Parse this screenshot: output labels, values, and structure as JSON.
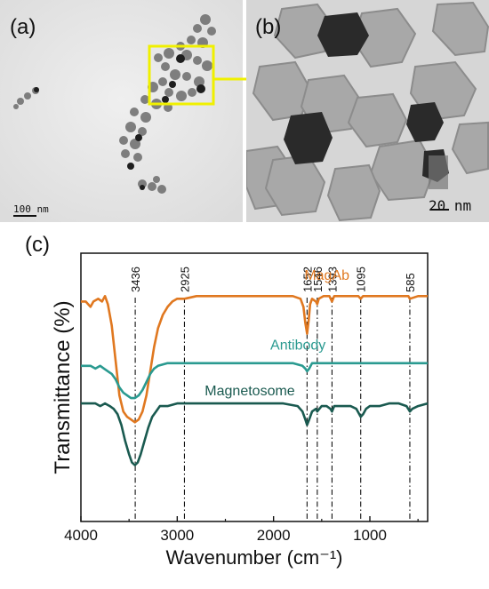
{
  "figure": {
    "panel_a": {
      "label": "(a)",
      "scale_bar_text": "100 nm"
    },
    "panel_b": {
      "label": "(b)",
      "scale_bar_text": "20 nm"
    },
    "panel_c": {
      "label": "(c)"
    }
  },
  "colors": {
    "magab": "#e07820",
    "antibody": "#2a9a90",
    "magnetosome": "#1a5a50",
    "highlight_box": "#f0f000",
    "arrow": "#f0f000"
  },
  "chart_data": {
    "type": "line",
    "xlabel": "Wavenumber (cm⁻¹)",
    "ylabel": "Transmittance (%)",
    "xlim": [
      4000,
      400
    ],
    "x_reversed": true,
    "xticks": [
      4000,
      3000,
      2000,
      1000
    ],
    "yticks_shown": false,
    "grid": false,
    "reference_lines": [
      {
        "x": 3436,
        "label": "3436"
      },
      {
        "x": 2925,
        "label": "2925"
      },
      {
        "x": 1652,
        "label": "1652"
      },
      {
        "x": 1546,
        "label": "1546"
      },
      {
        "x": 1393,
        "label": "1393"
      },
      {
        "x": 1095,
        "label": "1095"
      },
      {
        "x": 585,
        "label": "585"
      }
    ],
    "series": [
      {
        "name": "MagAb",
        "color": "#e07820",
        "points": [
          [
            4000,
            0.82
          ],
          [
            3950,
            0.82
          ],
          [
            3900,
            0.8
          ],
          [
            3870,
            0.82
          ],
          [
            3820,
            0.83
          ],
          [
            3780,
            0.82
          ],
          [
            3750,
            0.84
          ],
          [
            3720,
            0.81
          ],
          [
            3680,
            0.73
          ],
          [
            3640,
            0.6
          ],
          [
            3600,
            0.47
          ],
          [
            3560,
            0.41
          ],
          [
            3520,
            0.39
          ],
          [
            3480,
            0.38
          ],
          [
            3440,
            0.37
          ],
          [
            3400,
            0.38
          ],
          [
            3360,
            0.41
          ],
          [
            3320,
            0.47
          ],
          [
            3280,
            0.56
          ],
          [
            3240,
            0.65
          ],
          [
            3200,
            0.72
          ],
          [
            3150,
            0.77
          ],
          [
            3100,
            0.8
          ],
          [
            3050,
            0.82
          ],
          [
            3000,
            0.83
          ],
          [
            2925,
            0.83
          ],
          [
            2800,
            0.84
          ],
          [
            2600,
            0.84
          ],
          [
            2400,
            0.84
          ],
          [
            2200,
            0.84
          ],
          [
            2000,
            0.84
          ],
          [
            1800,
            0.84
          ],
          [
            1720,
            0.83
          ],
          [
            1690,
            0.8
          ],
          [
            1670,
            0.74
          ],
          [
            1652,
            0.7
          ],
          [
            1635,
            0.75
          ],
          [
            1620,
            0.81
          ],
          [
            1600,
            0.83
          ],
          [
            1560,
            0.82
          ],
          [
            1546,
            0.81
          ],
          [
            1530,
            0.83
          ],
          [
            1480,
            0.84
          ],
          [
            1420,
            0.84
          ],
          [
            1393,
            0.82
          ],
          [
            1370,
            0.84
          ],
          [
            1300,
            0.84
          ],
          [
            1200,
            0.84
          ],
          [
            1120,
            0.84
          ],
          [
            1095,
            0.83
          ],
          [
            1070,
            0.84
          ],
          [
            1000,
            0.84
          ],
          [
            900,
            0.84
          ],
          [
            800,
            0.84
          ],
          [
            700,
            0.84
          ],
          [
            600,
            0.84
          ],
          [
            585,
            0.83
          ],
          [
            500,
            0.84
          ],
          [
            400,
            0.84
          ]
        ]
      },
      {
        "name": "Antibody",
        "color": "#2a9a90",
        "points": [
          [
            4000,
            0.58
          ],
          [
            3900,
            0.58
          ],
          [
            3850,
            0.57
          ],
          [
            3800,
            0.58
          ],
          [
            3760,
            0.57
          ],
          [
            3720,
            0.56
          ],
          [
            3680,
            0.55
          ],
          [
            3640,
            0.53
          ],
          [
            3600,
            0.5
          ],
          [
            3560,
            0.48
          ],
          [
            3520,
            0.47
          ],
          [
            3480,
            0.46
          ],
          [
            3440,
            0.46
          ],
          [
            3400,
            0.47
          ],
          [
            3360,
            0.49
          ],
          [
            3320,
            0.52
          ],
          [
            3280,
            0.55
          ],
          [
            3240,
            0.57
          ],
          [
            3200,
            0.58
          ],
          [
            3100,
            0.59
          ],
          [
            3000,
            0.59
          ],
          [
            2925,
            0.59
          ],
          [
            2700,
            0.59
          ],
          [
            2400,
            0.59
          ],
          [
            2000,
            0.59
          ],
          [
            1800,
            0.59
          ],
          [
            1700,
            0.58
          ],
          [
            1670,
            0.57
          ],
          [
            1652,
            0.56
          ],
          [
            1630,
            0.57
          ],
          [
            1600,
            0.59
          ],
          [
            1500,
            0.59
          ],
          [
            1400,
            0.59
          ],
          [
            1300,
            0.59
          ],
          [
            1100,
            0.59
          ],
          [
            1000,
            0.59
          ],
          [
            800,
            0.59
          ],
          [
            600,
            0.59
          ],
          [
            400,
            0.59
          ]
        ]
      },
      {
        "name": "Magnetosome",
        "color": "#1a5a50",
        "points": [
          [
            4000,
            0.44
          ],
          [
            3900,
            0.44
          ],
          [
            3850,
            0.44
          ],
          [
            3800,
            0.43
          ],
          [
            3750,
            0.44
          ],
          [
            3700,
            0.43
          ],
          [
            3660,
            0.42
          ],
          [
            3620,
            0.4
          ],
          [
            3580,
            0.36
          ],
          [
            3540,
            0.3
          ],
          [
            3500,
            0.25
          ],
          [
            3470,
            0.22
          ],
          [
            3440,
            0.21
          ],
          [
            3410,
            0.22
          ],
          [
            3380,
            0.25
          ],
          [
            3340,
            0.3
          ],
          [
            3300,
            0.35
          ],
          [
            3260,
            0.39
          ],
          [
            3220,
            0.41
          ],
          [
            3180,
            0.43
          ],
          [
            3100,
            0.43
          ],
          [
            3000,
            0.44
          ],
          [
            2925,
            0.44
          ],
          [
            2700,
            0.44
          ],
          [
            2400,
            0.44
          ],
          [
            2100,
            0.44
          ],
          [
            1900,
            0.44
          ],
          [
            1750,
            0.43
          ],
          [
            1700,
            0.41
          ],
          [
            1670,
            0.38
          ],
          [
            1652,
            0.36
          ],
          [
            1630,
            0.38
          ],
          [
            1600,
            0.41
          ],
          [
            1560,
            0.42
          ],
          [
            1546,
            0.41
          ],
          [
            1500,
            0.43
          ],
          [
            1450,
            0.43
          ],
          [
            1410,
            0.42
          ],
          [
            1393,
            0.41
          ],
          [
            1370,
            0.43
          ],
          [
            1300,
            0.43
          ],
          [
            1200,
            0.43
          ],
          [
            1140,
            0.42
          ],
          [
            1110,
            0.4
          ],
          [
            1095,
            0.39
          ],
          [
            1070,
            0.4
          ],
          [
            1040,
            0.42
          ],
          [
            1000,
            0.43
          ],
          [
            900,
            0.43
          ],
          [
            800,
            0.44
          ],
          [
            700,
            0.44
          ],
          [
            620,
            0.43
          ],
          [
            585,
            0.41
          ],
          [
            560,
            0.42
          ],
          [
            500,
            0.43
          ],
          [
            400,
            0.44
          ]
        ]
      }
    ]
  }
}
